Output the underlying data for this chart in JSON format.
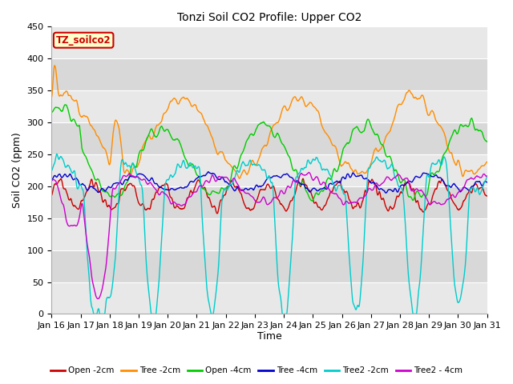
{
  "title": "Tonzi Soil CO2 Profile: Upper CO2",
  "xlabel": "Time",
  "ylabel": "Soil CO2 (ppm)",
  "ylim": [
    0,
    450
  ],
  "tick_labels": [
    "Jan 16",
    "Jan 17",
    "Jan 18",
    "Jan 19",
    "Jan 20",
    "Jan 21",
    "Jan 22",
    "Jan 23",
    "Jan 24",
    "Jan 25",
    "Jan 26",
    "Jan 27",
    "Jan 28",
    "Jan 29",
    "Jan 30",
    "Jan 31"
  ],
  "legend_label": "TZ_soilco2",
  "legend_entries": [
    "Open -2cm",
    "Tree -2cm",
    "Open -4cm",
    "Tree -4cm",
    "Tree2 -2cm",
    "Tree2 - 4cm"
  ],
  "legend_colors": [
    "#cc0000",
    "#ff8c00",
    "#00cc00",
    "#0000cc",
    "#00cccc",
    "#cc00cc"
  ],
  "yticks": [
    0,
    50,
    100,
    150,
    200,
    250,
    300,
    350,
    400,
    450
  ],
  "band_colors": [
    "#e8e8e8",
    "#d8d8d8"
  ],
  "fig_bg": "#ffffff",
  "plot_bg": "#e0e0e0",
  "title_fontsize": 10,
  "axis_fontsize": 8,
  "n_points": 1440
}
